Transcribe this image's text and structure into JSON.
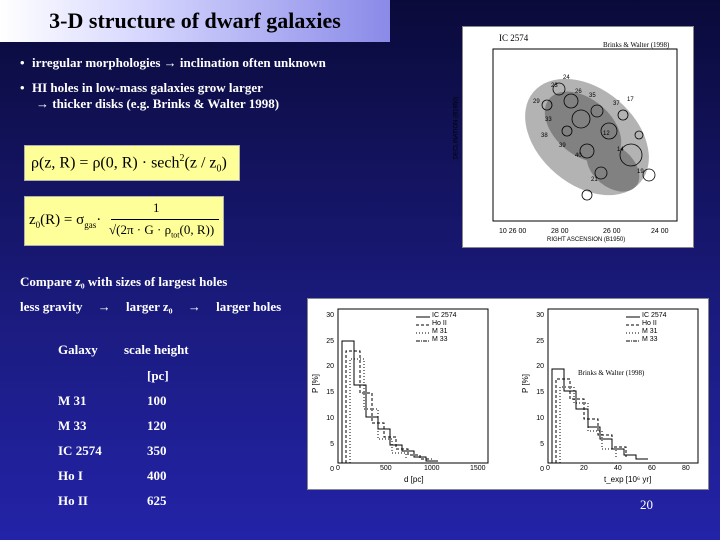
{
  "title": "3-D structure of dwarf galaxies",
  "bullets": [
    "irregular morphologies → inclination often unknown",
    "HI holes in low-mass galaxies grow larger"
  ],
  "bullet2_cont": "→ thicker disks (e.g. Brinks & Walter 1998)",
  "formula1": {
    "lhs": "ρ(z, R) = ρ(0, R) · sech",
    "sup": "2",
    "rhs": "(z / z",
    "rhs_sub": "0",
    "close": ")"
  },
  "formula2": {
    "lhs": "z",
    "lhs_sub": "0",
    "lhs_rest": "(R) = σ",
    "sigma_sub": "gas",
    "dot": "·",
    "numerator": "1",
    "denominator": "√(2π · G · ρ",
    "den_sub": "tot",
    "den_end": "(0, R))"
  },
  "compare_line": "Compare z₀ with sizes of largest holes",
  "gravity_line": {
    "part1": "less gravity",
    "arrow": "→",
    "part2": "larger z₀",
    "part3": "larger holes"
  },
  "table": {
    "header_col1": "Galaxy",
    "header_col2": "scale height",
    "unit": "[pc]",
    "rows": [
      {
        "galaxy": "M 31",
        "height": "100"
      },
      {
        "galaxy": "M 33",
        "height": "120"
      },
      {
        "galaxy": "IC 2574",
        "height": "350"
      },
      {
        "galaxy": "Ho I",
        "height": "400"
      },
      {
        "galaxy": "Ho II",
        "height": "625"
      }
    ]
  },
  "map_figure": {
    "galaxy_label": "IC 2574",
    "credit": "Brinks & Walter (1998)",
    "y_axis_label": "DECLINATION (B1950)",
    "x_axis_label": "RIGHT ASCENSION (B1950)",
    "hole_labels": [
      "24",
      "23",
      "26",
      "29",
      "33",
      "35",
      "37",
      "38",
      "39",
      "40",
      "12",
      "14",
      "19",
      "21",
      "17"
    ]
  },
  "histogram_figure": {
    "credit": "Brinks & Walter (1998)",
    "legend": [
      "IC 2574",
      "Ho II",
      "M 31",
      "M 33"
    ],
    "left_xlabel": "d [pc]",
    "right_xlabel": "t_exp [10⁶ yr]",
    "left_ylabel": "P [%]",
    "right_ylabel": "P [%]",
    "left_yticks": [
      "30",
      "25",
      "20",
      "15",
      "10",
      "5",
      "0"
    ],
    "right_yticks": [
      "30",
      "25",
      "20",
      "15",
      "10",
      "5",
      "0"
    ],
    "left_xticks": [
      "0",
      "500",
      "1000",
      "1500"
    ],
    "right_xticks": [
      "0",
      "20",
      "40",
      "60",
      "80"
    ]
  },
  "page_number": "20"
}
